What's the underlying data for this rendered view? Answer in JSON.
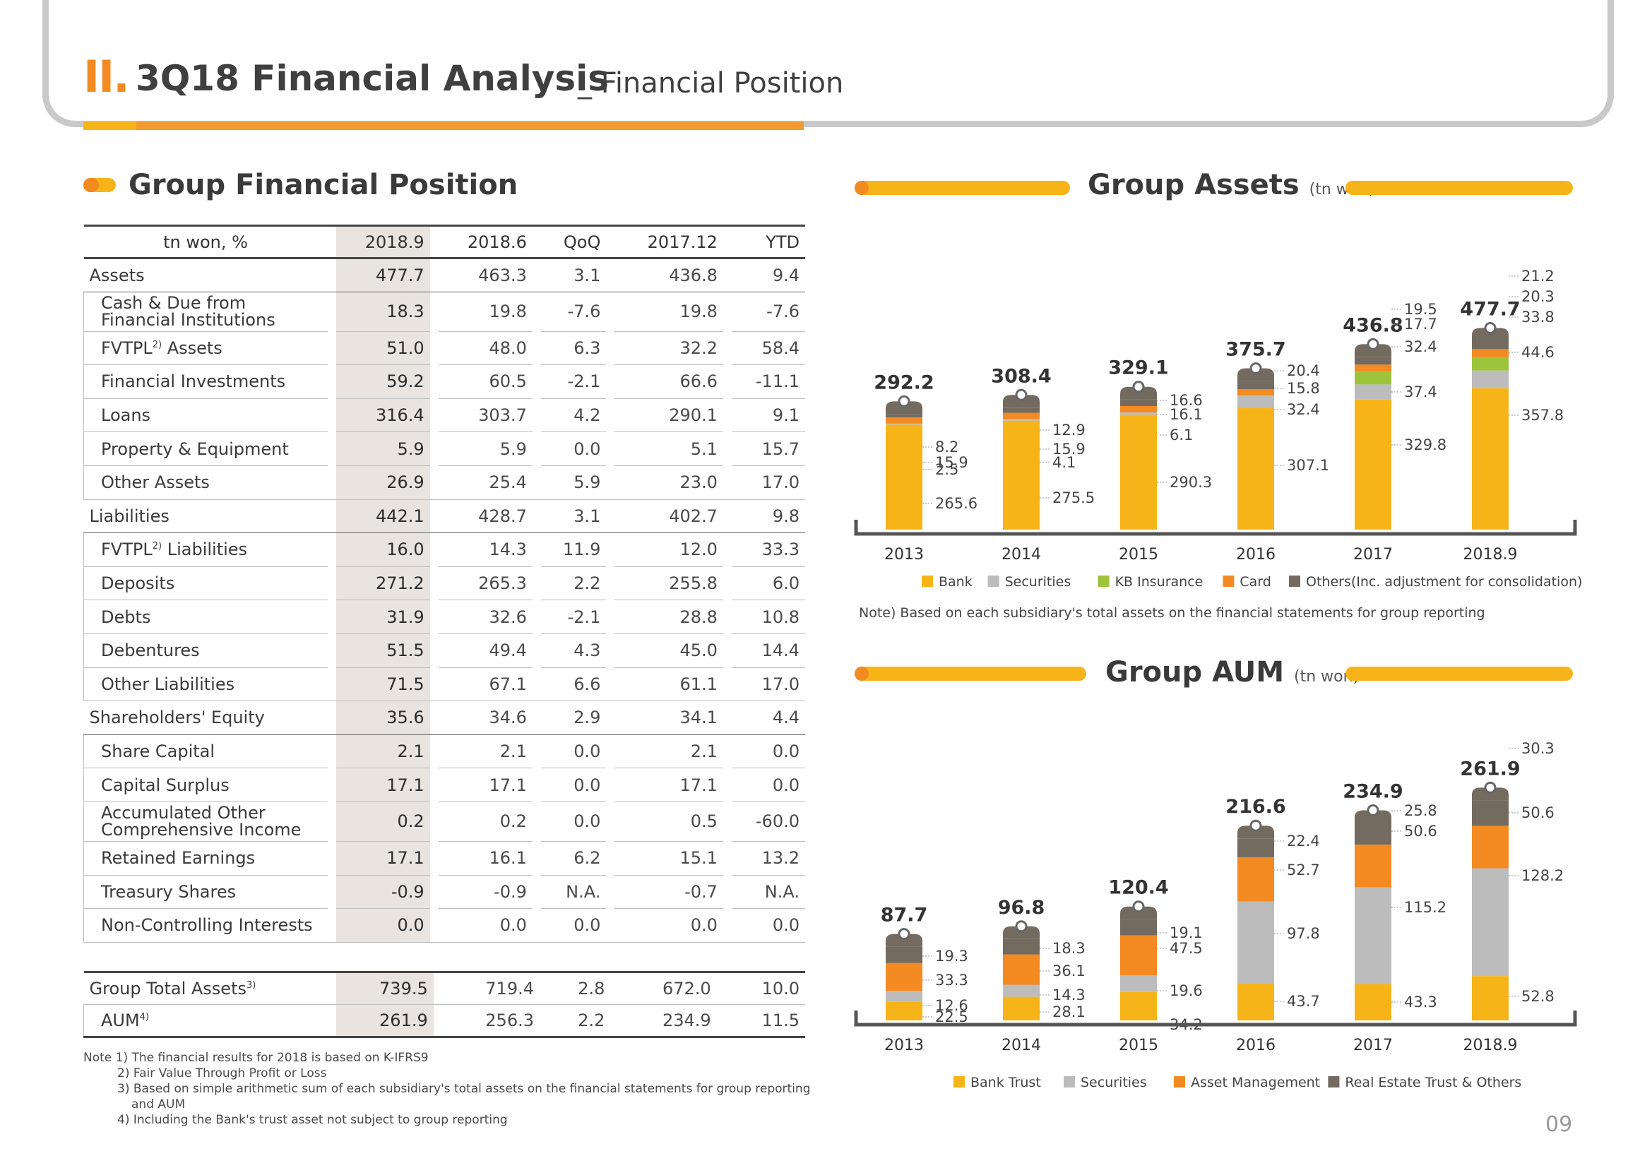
{
  "header": {
    "roman": "II.",
    "title": "3Q18 Financial Analysis",
    "subtitle": "_ Financial Position"
  },
  "table_section": {
    "title": "Group Financial Position"
  },
  "table": {
    "columns": [
      "tn won, %",
      "2018.9",
      "2018.6",
      "QoQ",
      "2017.12",
      "YTD"
    ],
    "rows": [
      {
        "label": "Assets",
        "values": [
          "477.7",
          "463.3",
          "3.1",
          "436.8",
          "9.4"
        ],
        "level": "main"
      },
      {
        "label": "Cash & Due from Financial Institutions",
        "values": [
          "18.3",
          "19.8",
          "-7.6",
          "19.8",
          "-7.6"
        ],
        "level": "sub"
      },
      {
        "label": "FVTPL",
        "sup": "2)",
        "label_after": " Assets",
        "values": [
          "51.0",
          "48.0",
          "6.3",
          "32.2",
          "58.4"
        ],
        "level": "sub"
      },
      {
        "label": "Financial Investments",
        "values": [
          "59.2",
          "60.5",
          "-2.1",
          "66.6",
          "-11.1"
        ],
        "level": "sub"
      },
      {
        "label": "Loans",
        "values": [
          "316.4",
          "303.7",
          "4.2",
          "290.1",
          "9.1"
        ],
        "level": "sub"
      },
      {
        "label": "Property & Equipment",
        "values": [
          "5.9",
          "5.9",
          "0.0",
          "5.1",
          "15.7"
        ],
        "level": "sub"
      },
      {
        "label": "Other Assets",
        "values": [
          "26.9",
          "25.4",
          "5.9",
          "23.0",
          "17.0"
        ],
        "level": "sub"
      },
      {
        "label": "Liabilities",
        "values": [
          "442.1",
          "428.7",
          "3.1",
          "402.7",
          "9.8"
        ],
        "level": "main"
      },
      {
        "label": "FVTPL",
        "sup": "2)",
        "label_after": " Liabilities",
        "values": [
          "16.0",
          "14.3",
          "11.9",
          "12.0",
          "33.3"
        ],
        "level": "sub"
      },
      {
        "label": "Deposits",
        "values": [
          "271.2",
          "265.3",
          "2.2",
          "255.8",
          "6.0"
        ],
        "level": "sub"
      },
      {
        "label": "Debts",
        "values": [
          "31.9",
          "32.6",
          "-2.1",
          "28.8",
          "10.8"
        ],
        "level": "sub"
      },
      {
        "label": "Debentures",
        "values": [
          "51.5",
          "49.4",
          "4.3",
          "45.0",
          "14.4"
        ],
        "level": "sub"
      },
      {
        "label": "Other Liabilities",
        "values": [
          "71.5",
          "67.1",
          "6.6",
          "61.1",
          "17.0"
        ],
        "level": "sub"
      },
      {
        "label": "Shareholders' Equity",
        "values": [
          "35.6",
          "34.6",
          "2.9",
          "34.1",
          "4.4"
        ],
        "level": "main"
      },
      {
        "label": "Share Capital",
        "values": [
          "2.1",
          "2.1",
          "0.0",
          "2.1",
          "0.0"
        ],
        "level": "sub"
      },
      {
        "label": "Capital Surplus",
        "values": [
          "17.1",
          "17.1",
          "0.0",
          "17.1",
          "0.0"
        ],
        "level": "sub"
      },
      {
        "label": "Accumulated Other Comprehensive Income",
        "values": [
          "0.2",
          "0.2",
          "0.0",
          "0.5",
          "-60.0"
        ],
        "level": "sub"
      },
      {
        "label": "Retained Earnings",
        "values": [
          "17.1",
          "16.1",
          "6.2",
          "15.1",
          "13.2"
        ],
        "level": "sub"
      },
      {
        "label": "Treasury Shares",
        "values": [
          "-0.9",
          "-0.9",
          "N.A.",
          "-0.7",
          "N.A."
        ],
        "level": "sub"
      },
      {
        "label": "Non-Controlling Interests",
        "values": [
          "0.0",
          "0.0",
          "0.0",
          "0.0",
          "0.0"
        ],
        "level": "sub"
      }
    ],
    "totals": [
      {
        "label": "Group Total Assets",
        "sup": "3)",
        "values": [
          "739.5",
          "719.4",
          "2.8",
          "672.0",
          "10.0"
        ]
      },
      {
        "label": "AUM",
        "sup": "4)",
        "values": [
          "261.9",
          "256.3",
          "2.2",
          "234.9",
          "11.5"
        ]
      }
    ],
    "notes": [
      "Note 1) The financial results for 2018 is based on K-IFRS9",
      "2) Fair Value Through Profit or Loss",
      "3) Based on simple arithmetic sum of each subsidiary's total assets on the financial statements for group reporting",
      "and AUM",
      "4) Including the Bank's trust asset not subject to group reporting"
    ]
  },
  "chart_data": [
    {
      "type": "bar",
      "stacked": true,
      "title": "Group Assets",
      "unit": "(tn won)",
      "categories": [
        "2013",
        "2014",
        "2015",
        "2016",
        "2017",
        "2018.9"
      ],
      "totals": [
        "292.2",
        "308.4",
        "329.1",
        "375.7",
        "436.8",
        "477.7"
      ],
      "series": [
        {
          "name": "Bank",
          "color": "#f7b419",
          "values": [
            265.6,
            275.5,
            290.3,
            307.1,
            329.8,
            357.8
          ]
        },
        {
          "name": "Securities",
          "color": "#bcbcbc",
          "values": [
            2.5,
            4.1,
            6.1,
            32.4,
            37.4,
            44.6
          ]
        },
        {
          "name": "KB Insurance",
          "color": "#9dc33b",
          "values": [
            0,
            0,
            0,
            0,
            32.4,
            33.8
          ]
        },
        {
          "name": "Card",
          "color": "#f38a22",
          "values": [
            15.9,
            15.9,
            16.1,
            15.8,
            17.7,
            20.3
          ]
        },
        {
          "name": "Others(Inc. adjustment for consolidation)",
          "color": "#736a60",
          "values": [
            8.2,
            12.9,
            16.6,
            20.4,
            19.5,
            21.2
          ]
        }
      ],
      "segment_labels": [
        [
          "265.6",
          "2.5",
          "",
          "15.9",
          "8.2"
        ],
        [
          "275.5",
          "4.1",
          "",
          "15.9",
          "12.9"
        ],
        [
          "290.3",
          "6.1",
          "",
          "16.1",
          "16.6"
        ],
        [
          "307.1",
          "32.4",
          "",
          "15.8",
          "20.4"
        ],
        [
          "329.8",
          "37.4",
          "32.4",
          "17.7",
          "19.5"
        ],
        [
          "357.8",
          "44.6",
          "33.8",
          "20.3",
          "21.2"
        ]
      ],
      "note": "Note) Based on each subsidiary's total assets on the financial statements for group reporting"
    },
    {
      "type": "bar",
      "stacked": true,
      "title": "Group AUM",
      "unit": "(tn won)",
      "categories": [
        "2013",
        "2014",
        "2015",
        "2016",
        "2017",
        "2018.9"
      ],
      "totals": [
        "87.7",
        "96.8",
        "120.4",
        "216.6",
        "234.9",
        "261.9"
      ],
      "series": [
        {
          "name": "Bank Trust",
          "color": "#f7b419",
          "values": [
            22.5,
            28.1,
            34.2,
            43.7,
            43.3,
            52.8
          ]
        },
        {
          "name": "Securities",
          "color": "#bcbcbc",
          "values": [
            12.6,
            14.3,
            19.6,
            97.8,
            115.2,
            128.2
          ]
        },
        {
          "name": "Asset Management",
          "color": "#f38a22",
          "values": [
            33.3,
            36.1,
            47.5,
            52.7,
            50.6,
            50.6
          ]
        },
        {
          "name": "Real Estate Trust & Others",
          "color": "#736a60",
          "values": [
            19.3,
            18.3,
            19.1,
            22.4,
            25.8,
            30.3
          ]
        }
      ],
      "segment_labels": [
        [
          "22.5",
          "12.6",
          "33.3",
          "19.3"
        ],
        [
          "28.1",
          "14.3",
          "36.1",
          "18.3"
        ],
        [
          "34.2",
          "19.6",
          "47.5",
          "19.1"
        ],
        [
          "43.7",
          "97.8",
          "52.7",
          "22.4"
        ],
        [
          "43.3",
          "115.2",
          "50.6",
          "25.8"
        ],
        [
          "52.8",
          "128.2",
          "50.6",
          "30.3"
        ]
      ]
    }
  ],
  "page_number": "09"
}
